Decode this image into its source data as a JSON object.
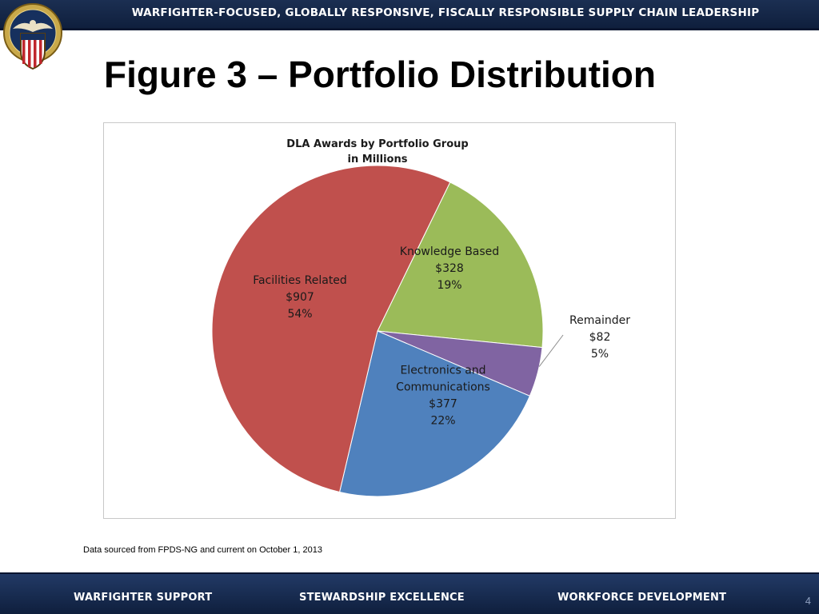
{
  "header": {
    "banner_text": "WARFIGHTER-FOCUSED, GLOBALLY RESPONSIVE, FISCALLY RESPONSIBLE SUPPLY CHAIN LEADERSHIP",
    "seal_text": "DEFENSE LOGISTICS AGENCY"
  },
  "slide": {
    "title": "Figure 3 – Portfolio Distribution",
    "source_note": "Data sourced from FPDS-NG and current on October 1, 2013"
  },
  "chart_data": {
    "type": "pie",
    "title_line1": "DLA Awards by Portfolio Group",
    "title_line2": "in Millions",
    "slices": [
      {
        "label": "Knowledge Based",
        "value_text": "$328",
        "pct_text": "19%",
        "value": 328,
        "color": "#9bbb59"
      },
      {
        "label": "Remainder",
        "value_text": "$82",
        "pct_text": "5%",
        "value": 82,
        "color": "#8064a2"
      },
      {
        "label": "Electronics and Communications",
        "value_text": "$377",
        "pct_text": "22%",
        "value": 377,
        "color": "#4f81bd"
      },
      {
        "label": "Facilities Related",
        "value_text": "$907",
        "pct_text": "54%",
        "value": 907,
        "color": "#c0504d"
      }
    ]
  },
  "footer": {
    "items": [
      "WARFIGHTER SUPPORT",
      "STEWARDSHIP EXCELLENCE",
      "WORKFORCE DEVELOPMENT"
    ],
    "page_number": "4"
  }
}
